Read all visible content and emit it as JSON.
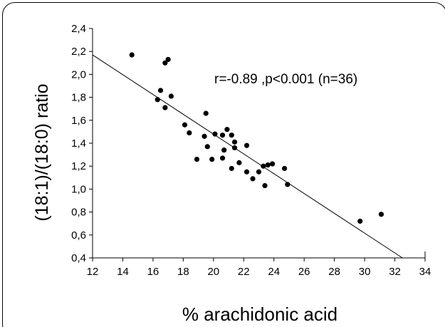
{
  "chart_data": {
    "type": "scatter",
    "xlabel": "% arachidonic acid",
    "ylabel": "(18:1)/(18:0) ratio",
    "annotation": "r=-0.89 ,p<0.001 (n=36)",
    "xlim": [
      12,
      34
    ],
    "ylim": [
      0.4,
      2.4
    ],
    "x_ticks": [
      12,
      14,
      16,
      18,
      20,
      22,
      24,
      26,
      28,
      30,
      32,
      34
    ],
    "y_ticks": [
      0.4,
      0.6,
      0.8,
      1.0,
      1.2,
      1.4,
      1.6,
      1.8,
      2.0,
      2.2,
      2.4
    ],
    "x_tick_labels": [
      "12",
      "14",
      "16",
      "18",
      "20",
      "22",
      "24",
      "26",
      "28",
      "30",
      "32",
      "34"
    ],
    "y_tick_labels": [
      "0,4",
      "0,6",
      "0,8",
      "1,0",
      "1,2",
      "1,4",
      "1,6",
      "1,8",
      "2,0",
      "2,2",
      "2,4"
    ],
    "grid": false,
    "marker_color": "#000000",
    "points": [
      {
        "x": 14.6,
        "y": 2.17
      },
      {
        "x": 16.8,
        "y": 2.1
      },
      {
        "x": 17.0,
        "y": 2.13
      },
      {
        "x": 16.5,
        "y": 1.86
      },
      {
        "x": 16.3,
        "y": 1.78
      },
      {
        "x": 17.2,
        "y": 1.81
      },
      {
        "x": 16.8,
        "y": 1.71
      },
      {
        "x": 18.1,
        "y": 1.56
      },
      {
        "x": 18.4,
        "y": 1.49
      },
      {
        "x": 19.5,
        "y": 1.66
      },
      {
        "x": 19.4,
        "y": 1.46
      },
      {
        "x": 19.6,
        "y": 1.37
      },
      {
        "x": 18.9,
        "y": 1.26
      },
      {
        "x": 20.1,
        "y": 1.48
      },
      {
        "x": 20.6,
        "y": 1.47
      },
      {
        "x": 20.9,
        "y": 1.52
      },
      {
        "x": 21.2,
        "y": 1.47
      },
      {
        "x": 21.4,
        "y": 1.41
      },
      {
        "x": 21.4,
        "y": 1.36
      },
      {
        "x": 20.7,
        "y": 1.34
      },
      {
        "x": 19.9,
        "y": 1.26
      },
      {
        "x": 20.6,
        "y": 1.27
      },
      {
        "x": 21.2,
        "y": 1.18
      },
      {
        "x": 21.7,
        "y": 1.23
      },
      {
        "x": 22.2,
        "y": 1.38
      },
      {
        "x": 22.2,
        "y": 1.15
      },
      {
        "x": 22.6,
        "y": 1.09
      },
      {
        "x": 23.0,
        "y": 1.15
      },
      {
        "x": 23.3,
        "y": 1.2
      },
      {
        "x": 23.6,
        "y": 1.21
      },
      {
        "x": 23.9,
        "y": 1.22
      },
      {
        "x": 23.4,
        "y": 1.03
      },
      {
        "x": 24.7,
        "y": 1.18
      },
      {
        "x": 24.9,
        "y": 1.04
      },
      {
        "x": 29.7,
        "y": 0.72
      },
      {
        "x": 31.1,
        "y": 0.78
      }
    ],
    "trendline": {
      "x1": 12.0,
      "y1": 2.17,
      "x2": 32.5,
      "y2": 0.4
    }
  }
}
